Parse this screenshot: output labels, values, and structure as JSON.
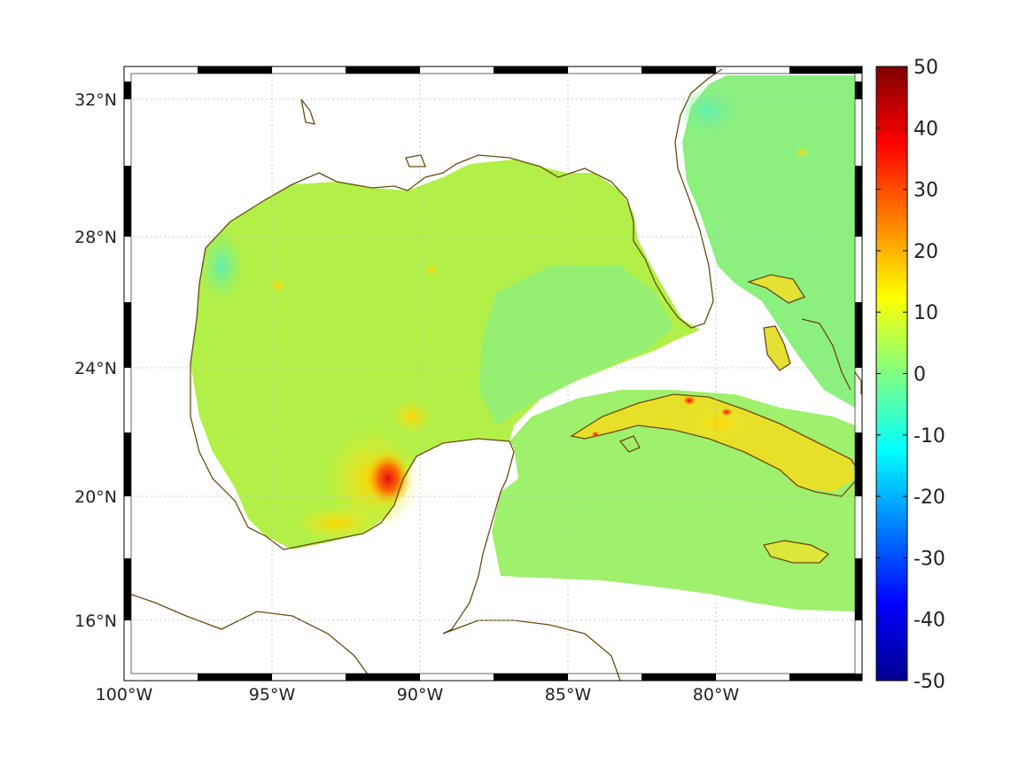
{
  "map": {
    "lon_ticks": [
      {
        "value": -100,
        "label": "100°W"
      },
      {
        "value": -95,
        "label": "95°W"
      },
      {
        "value": -90,
        "label": "90°W"
      },
      {
        "value": -85,
        "label": "85°W"
      },
      {
        "value": -80,
        "label": "80°W"
      }
    ],
    "lat_ticks": [
      {
        "value": 32,
        "label": "32°N"
      },
      {
        "value": 28,
        "label": "28°N"
      },
      {
        "value": 24,
        "label": "24°N"
      },
      {
        "value": 20,
        "label": "20°N"
      },
      {
        "value": 16,
        "label": "16°N"
      }
    ],
    "lon_range": [
      -100,
      -75
    ],
    "lat_range": [
      14.3,
      33
    ],
    "coastline_color": "#6b4a12",
    "land_color": "#ffffff",
    "grid": true
  },
  "colorbar": {
    "min": -50,
    "max": 50,
    "ticks": [
      {
        "value": 50,
        "label": "50"
      },
      {
        "value": 40,
        "label": "40"
      },
      {
        "value": 30,
        "label": "30"
      },
      {
        "value": 20,
        "label": "20"
      },
      {
        "value": 10,
        "label": "10"
      },
      {
        "value": 0,
        "label": "0"
      },
      {
        "value": -10,
        "label": "-10"
      },
      {
        "value": -20,
        "label": "-20"
      },
      {
        "value": -30,
        "label": "-30"
      },
      {
        "value": -40,
        "label": "-40"
      },
      {
        "value": -50,
        "label": "-50"
      }
    ],
    "colormap": "jet"
  }
}
